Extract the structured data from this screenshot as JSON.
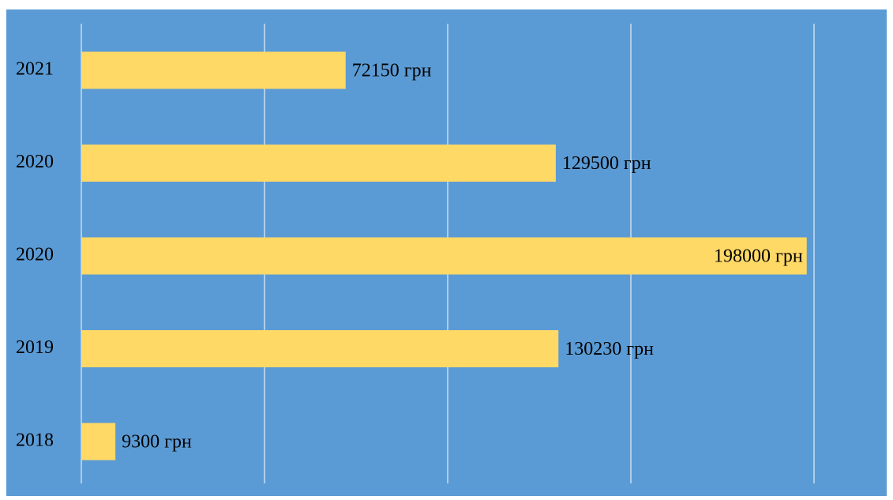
{
  "chart_data": {
    "type": "bar",
    "orientation": "horizontal",
    "categories": [
      "2021",
      "2020",
      "2020",
      "2019",
      "2018"
    ],
    "values": [
      72150,
      129500,
      198000,
      130230,
      9300
    ],
    "data_labels": [
      "72150 грн",
      "129500 грн",
      "198000 грн",
      "130230 грн",
      "9300 грн"
    ],
    "title": "",
    "xlabel": "",
    "ylabel": "",
    "xlim": [
      0,
      200000
    ],
    "grid": true,
    "legend": "none",
    "colors": {
      "plot_background": "#5b9bd5",
      "bar": "#ffd966",
      "grid": "#ffffff",
      "text": "#000000"
    }
  }
}
